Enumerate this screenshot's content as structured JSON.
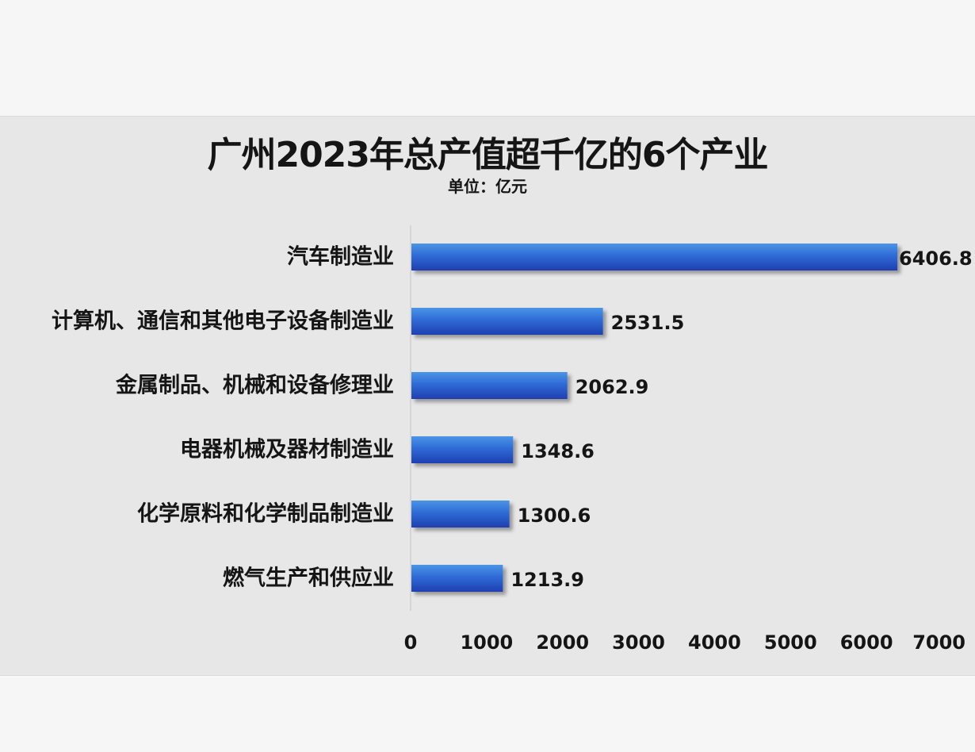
{
  "chart_data": {
    "type": "bar",
    "orientation": "horizontal",
    "title": "广州2023年总产值超千亿的6个产业",
    "subtitle": "单位：亿元",
    "categories": [
      "汽车制造业",
      "计算机、通信和其他电子设备制造业",
      "金属制品、机械和设备修理业",
      "电器机械及器材制造业",
      "化学原料和化学制品制造业",
      "燃气生产和供应业"
    ],
    "values": [
      6406.8,
      2531.5,
      2062.9,
      1348.6,
      1300.6,
      1213.9
    ],
    "value_labels": [
      "6406.8",
      "2531.5",
      "2062.9",
      "1348.6",
      "1300.6",
      "1213.9"
    ],
    "xlim": [
      0,
      7000
    ],
    "xticks": [
      0,
      1000,
      2000,
      3000,
      4000,
      5000,
      6000,
      7000
    ],
    "grid": false,
    "legend": "none",
    "bar_color_top": "#4a95e6",
    "bar_color_bottom": "#1f3fb0"
  }
}
